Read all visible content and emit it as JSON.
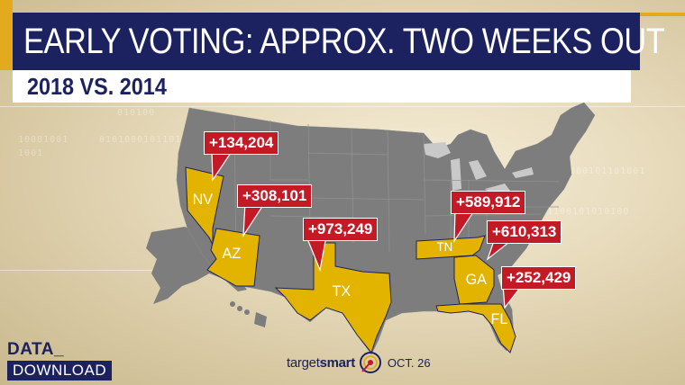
{
  "header": {
    "title": "EARLY VOTING: APPROX. TWO WEEKS OUT",
    "subtitle": "2018 VS. 2014"
  },
  "states": [
    {
      "abbr": "NV",
      "callout": "+134,204"
    },
    {
      "abbr": "AZ",
      "callout": "+308,101"
    },
    {
      "abbr": "TX",
      "callout": "+973,249"
    },
    {
      "abbr": "TN",
      "callout": "+589,912"
    },
    {
      "abbr": "GA",
      "callout": "+610,313"
    },
    {
      "abbr": "FL",
      "callout": "+252,429"
    }
  ],
  "branding": {
    "data_top": "DATA_",
    "data_bottom": "DOWNLOAD"
  },
  "source": {
    "name_part1": "target",
    "name_part2": "smart",
    "date": "OCT. 26"
  },
  "background_digits": [
    "010100",
    "10001001",
    "1001",
    "0101000101101",
    "010101000101101001",
    "01100101010100"
  ],
  "colors": {
    "highlight_state": "#e2b400",
    "callout_red": "#c41a26",
    "navy": "#1c2160",
    "gold_accent": "#e2aa1c",
    "base_map": "#7d7d7d"
  }
}
